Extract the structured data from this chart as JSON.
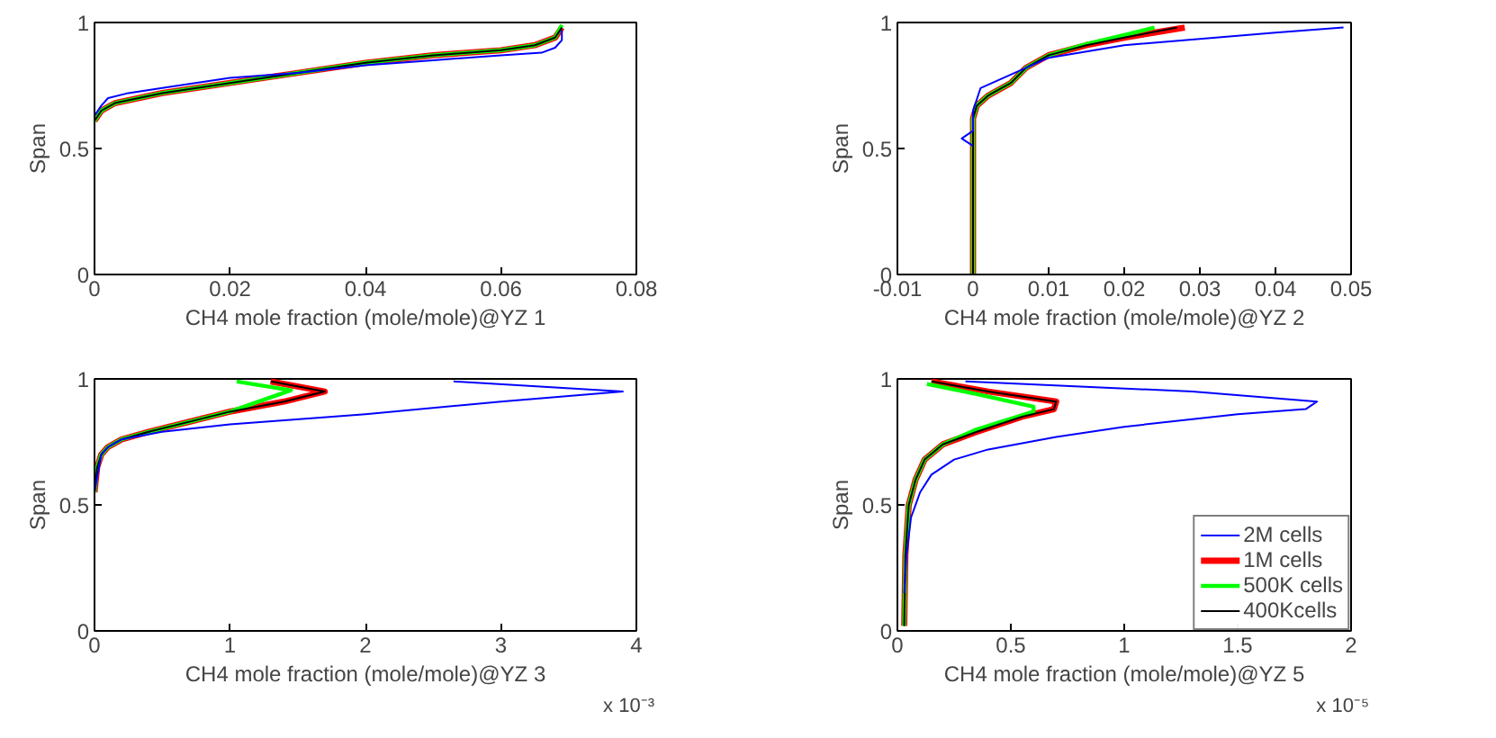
{
  "chart_data": [
    {
      "type": "line",
      "xlabel": "CH4 mole fraction (mole/mole)@YZ 1",
      "ylabel": "Span",
      "xlim": [
        0,
        0.08
      ],
      "ylim": [
        0,
        1
      ],
      "xticks": [
        0,
        0.02,
        0.04,
        0.06,
        0.08
      ],
      "yticks": [
        0,
        0.5,
        1
      ],
      "series": [
        {
          "color": "#0000ff",
          "x": [
            0,
            0.001,
            0.002,
            0.005,
            0.01,
            0.02,
            0.03,
            0.04,
            0.05,
            0.06,
            0.066,
            0.068,
            0.069,
            0.069
          ],
          "values": [
            0.63,
            0.67,
            0.7,
            0.72,
            0.74,
            0.78,
            0.8,
            0.83,
            0.85,
            0.87,
            0.88,
            0.9,
            0.93,
            0.97
          ]
        },
        {
          "color": "#ff0000",
          "x": [
            0,
            0.001,
            0.003,
            0.01,
            0.02,
            0.03,
            0.04,
            0.05,
            0.06,
            0.065,
            0.068,
            0.069
          ],
          "values": [
            0.61,
            0.65,
            0.68,
            0.72,
            0.76,
            0.8,
            0.84,
            0.87,
            0.89,
            0.91,
            0.94,
            0.98
          ]
        },
        {
          "color": "#00ff00",
          "x": [
            0,
            0.001,
            0.003,
            0.01,
            0.02,
            0.03,
            0.04,
            0.05,
            0.06,
            0.065,
            0.068,
            0.069
          ],
          "values": [
            0.61,
            0.65,
            0.68,
            0.72,
            0.76,
            0.8,
            0.84,
            0.87,
            0.89,
            0.91,
            0.94,
            0.99
          ]
        },
        {
          "color": "#000000",
          "x": [
            0,
            0.001,
            0.003,
            0.01,
            0.02,
            0.03,
            0.04,
            0.05,
            0.06,
            0.065,
            0.068,
            0.069
          ],
          "values": [
            0.61,
            0.65,
            0.68,
            0.72,
            0.76,
            0.8,
            0.84,
            0.87,
            0.89,
            0.91,
            0.94,
            0.98
          ]
        }
      ]
    },
    {
      "type": "line",
      "xlabel": "CH4 mole fraction (mole/mole)@YZ 2",
      "ylabel": "Span",
      "xlim": [
        -0.01,
        0.05
      ],
      "ylim": [
        0,
        1
      ],
      "xticks": [
        -0.01,
        0,
        0.01,
        0.02,
        0.03,
        0.04,
        0.05
      ],
      "yticks": [
        0,
        0.5,
        1
      ],
      "series": [
        {
          "color": "#0000ff",
          "x": [
            0,
            -0.0015,
            0,
            0,
            0.001,
            0.004,
            0.007,
            0.01,
            0.02,
            0.03,
            0.04,
            0.049
          ],
          "values": [
            0.51,
            0.54,
            0.57,
            0.65,
            0.74,
            0.78,
            0.82,
            0.86,
            0.91,
            0.935,
            0.96,
            0.98
          ]
        },
        {
          "color": "#ff0000",
          "x": [
            0,
            0,
            0.0005,
            0.002,
            0.005,
            0.007,
            0.01,
            0.015,
            0.02,
            0.028
          ],
          "values": [
            0,
            0.62,
            0.67,
            0.71,
            0.76,
            0.82,
            0.87,
            0.91,
            0.94,
            0.98
          ]
        },
        {
          "color": "#00ff00",
          "x": [
            0,
            0,
            0.0005,
            0.002,
            0.005,
            0.007,
            0.01,
            0.015,
            0.02,
            0.024
          ],
          "values": [
            0,
            0.62,
            0.67,
            0.71,
            0.76,
            0.82,
            0.87,
            0.915,
            0.95,
            0.98
          ]
        },
        {
          "color": "#000000",
          "x": [
            0,
            0,
            0.0005,
            0.002,
            0.005,
            0.007,
            0.01,
            0.015,
            0.02,
            0.027
          ],
          "values": [
            0,
            0.62,
            0.67,
            0.71,
            0.76,
            0.82,
            0.87,
            0.91,
            0.94,
            0.98
          ]
        }
      ]
    },
    {
      "type": "line",
      "xlabel": "CH4 mole fraction (mole/mole)@YZ 3",
      "ylabel": "Span",
      "xlim": [
        0,
        4
      ],
      "ylim": [
        0,
        1
      ],
      "xticks": [
        0,
        1,
        2,
        3,
        4
      ],
      "yticks": [
        0,
        0.5,
        1
      ],
      "annotations": [
        "x 10⁻³"
      ],
      "series": [
        {
          "color": "#0000ff",
          "x": [
            0,
            0.05,
            0.1,
            0.2,
            0.5,
            1,
            2,
            3,
            3.9,
            2.65
          ],
          "values": [
            0.55,
            0.7,
            0.73,
            0.76,
            0.79,
            0.82,
            0.86,
            0.91,
            0.95,
            0.99
          ]
        },
        {
          "color": "#ff0000",
          "x": [
            0,
            0.02,
            0.05,
            0.1,
            0.2,
            0.4,
            0.7,
            1.0,
            1.4,
            1.7,
            1.3
          ],
          "values": [
            0.55,
            0.65,
            0.7,
            0.73,
            0.76,
            0.79,
            0.83,
            0.87,
            0.91,
            0.95,
            0.99
          ]
        },
        {
          "color": "#00ff00",
          "x": [
            0,
            0.02,
            0.05,
            0.1,
            0.2,
            0.4,
            0.7,
            1.0,
            1.45,
            1.05
          ],
          "values": [
            0.55,
            0.65,
            0.7,
            0.73,
            0.76,
            0.79,
            0.83,
            0.87,
            0.955,
            0.99
          ]
        },
        {
          "color": "#000000",
          "x": [
            0,
            0.02,
            0.05,
            0.1,
            0.2,
            0.4,
            0.7,
            1.0,
            1.4,
            1.7,
            1.3
          ],
          "values": [
            0.55,
            0.65,
            0.7,
            0.73,
            0.76,
            0.79,
            0.83,
            0.87,
            0.91,
            0.95,
            0.99
          ]
        }
      ]
    },
    {
      "type": "line",
      "xlabel": "CH4 mole fraction (mole/mole)@YZ 5",
      "ylabel": "Span",
      "xlim": [
        0,
        2
      ],
      "ylim": [
        0,
        1
      ],
      "xticks": [
        0,
        0.5,
        1,
        1.5,
        2
      ],
      "yticks": [
        0,
        0.5,
        1
      ],
      "annotations": [
        "x 10⁻⁵"
      ],
      "legend": "bottom right",
      "series": [
        {
          "name": "2M cells",
          "color": "#0000ff",
          "x": [
            0.03,
            0.04,
            0.06,
            0.1,
            0.15,
            0.25,
            0.4,
            0.7,
            1.0,
            1.5,
            1.8,
            1.85,
            1.3,
            0.3
          ],
          "values": [
            0.15,
            0.3,
            0.45,
            0.55,
            0.62,
            0.68,
            0.72,
            0.77,
            0.81,
            0.86,
            0.88,
            0.91,
            0.95,
            0.99
          ]
        },
        {
          "name": "1M cells",
          "color": "#ff0000",
          "x": [
            0.03,
            0.035,
            0.05,
            0.08,
            0.12,
            0.2,
            0.35,
            0.55,
            0.69,
            0.7,
            0.4,
            0.15
          ],
          "values": [
            0.02,
            0.3,
            0.5,
            0.6,
            0.68,
            0.74,
            0.79,
            0.85,
            0.88,
            0.91,
            0.95,
            0.99
          ]
        },
        {
          "name": "500K cells",
          "color": "#00ff00",
          "x": [
            0.03,
            0.035,
            0.05,
            0.08,
            0.12,
            0.2,
            0.35,
            0.6,
            0.6,
            0.35,
            0.13
          ],
          "values": [
            0.02,
            0.3,
            0.5,
            0.6,
            0.68,
            0.74,
            0.8,
            0.87,
            0.89,
            0.94,
            0.98
          ]
        },
        {
          "name": "400Kcells",
          "color": "#000000",
          "x": [
            0.03,
            0.035,
            0.05,
            0.08,
            0.12,
            0.2,
            0.35,
            0.55,
            0.69,
            0.7,
            0.4,
            0.15
          ],
          "values": [
            0.02,
            0.3,
            0.5,
            0.6,
            0.68,
            0.74,
            0.79,
            0.85,
            0.88,
            0.91,
            0.95,
            0.99
          ]
        }
      ]
    }
  ]
}
